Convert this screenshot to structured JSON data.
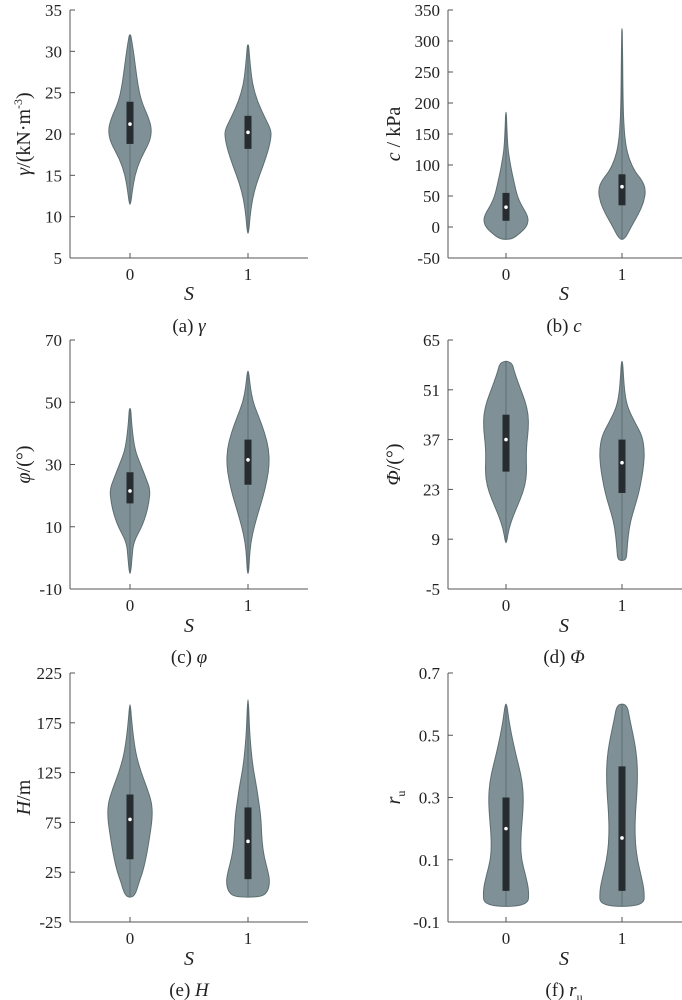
{
  "colors": {
    "violin_fill": "#7f9196",
    "violin_stroke": "#5d6e72",
    "box": "#262c30",
    "median": "#ffffff",
    "axis": "#555555"
  },
  "chart_data": [
    {
      "type": "violin",
      "caption": {
        "prefix": "(a) ",
        "sym": "γ",
        "sub": ""
      },
      "xlabel": "S",
      "ylabel": {
        "sym": "γ",
        "text": "/(kN·m",
        "sup": "-3",
        "tail": ")"
      },
      "categories": [
        "0",
        "1"
      ],
      "ylim": [
        5,
        35
      ],
      "yticks": [
        5,
        10,
        15,
        20,
        25,
        30,
        35
      ],
      "ytick_labels": [
        "5",
        "10",
        "15",
        "20",
        "25",
        "30",
        "35"
      ],
      "violins": [
        {
          "category": "0",
          "min": 11.5,
          "max": 32,
          "q1": 18.8,
          "median": 21.2,
          "q3": 23.9,
          "profile": [
            [
              11.5,
              0.02
            ],
            [
              13,
              0.08
            ],
            [
              15,
              0.17
            ],
            [
              17,
              0.37
            ],
            [
              19,
              0.7
            ],
            [
              20.5,
              0.78
            ],
            [
              22,
              0.66
            ],
            [
              24,
              0.4
            ],
            [
              26,
              0.28
            ],
            [
              28,
              0.2
            ],
            [
              30,
              0.12
            ],
            [
              31.5,
              0.05
            ],
            [
              32,
              0.02
            ]
          ]
        },
        {
          "category": "1",
          "min": 8,
          "max": 30.8,
          "q1": 18.2,
          "median": 20.2,
          "q3": 22.2,
          "profile": [
            [
              8,
              0.02
            ],
            [
              10,
              0.07
            ],
            [
              12,
              0.15
            ],
            [
              14,
              0.3
            ],
            [
              16,
              0.52
            ],
            [
              18,
              0.72
            ],
            [
              19.5,
              0.82
            ],
            [
              20.5,
              0.82
            ],
            [
              22,
              0.6
            ],
            [
              24,
              0.33
            ],
            [
              26,
              0.16
            ],
            [
              28,
              0.09
            ],
            [
              30,
              0.04
            ],
            [
              30.8,
              0.02
            ]
          ]
        }
      ],
      "xlabel_sym": "S"
    },
    {
      "type": "violin",
      "caption": {
        "prefix": "(b) ",
        "sym": "c",
        "sub": ""
      },
      "xlabel": "S",
      "ylabel": {
        "sym": "c",
        "text": " / kPa",
        "sup": "",
        "tail": ""
      },
      "categories": [
        "0",
        "1"
      ],
      "ylim": [
        -50,
        350
      ],
      "yticks": [
        -50,
        0,
        50,
        100,
        150,
        200,
        250,
        300,
        350
      ],
      "ytick_labels": [
        "-50",
        "0",
        "50",
        "100",
        "150",
        "200",
        "250",
        "300",
        "350"
      ],
      "violins": [
        {
          "category": "0",
          "min": -20,
          "max": 185,
          "q1": 10,
          "median": 32,
          "q3": 55,
          "profile": [
            [
              -20,
              0.2
            ],
            [
              -10,
              0.5
            ],
            [
              0,
              0.72
            ],
            [
              10,
              0.8
            ],
            [
              20,
              0.75
            ],
            [
              35,
              0.55
            ],
            [
              50,
              0.4
            ],
            [
              70,
              0.3
            ],
            [
              90,
              0.2
            ],
            [
              110,
              0.12
            ],
            [
              130,
              0.06
            ],
            [
              160,
              0.03
            ],
            [
              185,
              0.015
            ]
          ]
        },
        {
          "category": "1",
          "min": -20,
          "max": 320,
          "q1": 35,
          "median": 65,
          "q3": 85,
          "profile": [
            [
              -20,
              0.1
            ],
            [
              0,
              0.32
            ],
            [
              20,
              0.58
            ],
            [
              40,
              0.78
            ],
            [
              60,
              0.85
            ],
            [
              75,
              0.72
            ],
            [
              90,
              0.45
            ],
            [
              110,
              0.25
            ],
            [
              130,
              0.14
            ],
            [
              160,
              0.07
            ],
            [
              200,
              0.04
            ],
            [
              250,
              0.025
            ],
            [
              300,
              0.015
            ],
            [
              320,
              0.01
            ]
          ]
        }
      ]
    },
    {
      "type": "violin",
      "caption": {
        "prefix": "(c) ",
        "sym": "φ",
        "sub": ""
      },
      "xlabel": "S",
      "ylabel": {
        "sym": "φ",
        "text": "/(°)",
        "sup": "",
        "tail": ""
      },
      "categories": [
        "0",
        "1"
      ],
      "ylim": [
        -10,
        70
      ],
      "yticks": [
        -10,
        10,
        30,
        50,
        70
      ],
      "ytick_labels": [
        "-10",
        "10",
        "30",
        "50",
        "70"
      ],
      "violins": [
        {
          "category": "0",
          "min": -5,
          "max": 48,
          "q1": 17.5,
          "median": 21.5,
          "q3": 27.5,
          "profile": [
            [
              -5,
              0.02
            ],
            [
              0,
              0.07
            ],
            [
              5,
              0.12
            ],
            [
              10,
              0.42
            ],
            [
              14,
              0.58
            ],
            [
              18,
              0.68
            ],
            [
              22,
              0.72
            ],
            [
              26,
              0.55
            ],
            [
              30,
              0.38
            ],
            [
              34,
              0.2
            ],
            [
              38,
              0.12
            ],
            [
              42,
              0.07
            ],
            [
              46,
              0.04
            ],
            [
              48,
              0.02
            ]
          ]
        },
        {
          "category": "1",
          "min": -5,
          "max": 60,
          "q1": 23.5,
          "median": 31.5,
          "q3": 38,
          "profile": [
            [
              -5,
              0.02
            ],
            [
              0,
              0.05
            ],
            [
              5,
              0.1
            ],
            [
              10,
              0.22
            ],
            [
              15,
              0.38
            ],
            [
              20,
              0.55
            ],
            [
              25,
              0.68
            ],
            [
              30,
              0.76
            ],
            [
              35,
              0.74
            ],
            [
              40,
              0.6
            ],
            [
              45,
              0.4
            ],
            [
              50,
              0.18
            ],
            [
              55,
              0.08
            ],
            [
              60,
              0.02
            ]
          ]
        }
      ]
    },
    {
      "type": "violin",
      "caption": {
        "prefix": "(d) ",
        "sym": "Φ",
        "sub": ""
      },
      "xlabel": "S",
      "ylabel": {
        "sym": "Φ",
        "text": "/(°)",
        "sup": "",
        "tail": ""
      },
      "categories": [
        "0",
        "1"
      ],
      "ylim": [
        -5,
        65
      ],
      "yticks": [
        -5,
        9,
        23,
        37,
        51,
        65
      ],
      "ytick_labels": [
        "-5",
        "9",
        "23",
        "37",
        "51",
        "65"
      ],
      "violins": [
        {
          "category": "0",
          "min": 8,
          "max": 59,
          "q1": 28,
          "median": 37,
          "q3": 44,
          "profile": [
            [
              8,
              0.02
            ],
            [
              12,
              0.1
            ],
            [
              16,
              0.28
            ],
            [
              20,
              0.5
            ],
            [
              24,
              0.68
            ],
            [
              28,
              0.74
            ],
            [
              32,
              0.72
            ],
            [
              36,
              0.74
            ],
            [
              40,
              0.8
            ],
            [
              44,
              0.8
            ],
            [
              48,
              0.68
            ],
            [
              52,
              0.48
            ],
            [
              56,
              0.3
            ],
            [
              58.5,
              0.22
            ],
            [
              59,
              0.02
            ]
          ]
        },
        {
          "category": "1",
          "min": 3,
          "max": 59,
          "q1": 22,
          "median": 30.5,
          "q3": 37,
          "profile": [
            [
              3,
              0.15
            ],
            [
              6,
              0.18
            ],
            [
              10,
              0.22
            ],
            [
              14,
              0.3
            ],
            [
              18,
              0.45
            ],
            [
              22,
              0.6
            ],
            [
              26,
              0.7
            ],
            [
              30,
              0.78
            ],
            [
              34,
              0.8
            ],
            [
              38,
              0.72
            ],
            [
              42,
              0.45
            ],
            [
              46,
              0.2
            ],
            [
              50,
              0.1
            ],
            [
              55,
              0.05
            ],
            [
              59,
              0.02
            ]
          ]
        }
      ]
    },
    {
      "type": "violin",
      "caption": {
        "prefix": "(e) ",
        "sym": "H",
        "sub": ""
      },
      "xlabel": "S",
      "ylabel": {
        "sym": "H",
        "text": "/m",
        "sup": "",
        "tail": ""
      },
      "categories": [
        "0",
        "1"
      ],
      "ylim": [
        -25,
        225
      ],
      "yticks": [
        -25,
        25,
        75,
        125,
        175,
        225
      ],
      "ytick_labels": [
        "-25",
        "25",
        "75",
        "125",
        "175",
        "225"
      ],
      "violins": [
        {
          "category": "0",
          "min": 0,
          "max": 193,
          "q1": 38,
          "median": 78,
          "q3": 103,
          "profile": [
            [
              0,
              0.1
            ],
            [
              5,
              0.22
            ],
            [
              15,
              0.32
            ],
            [
              25,
              0.45
            ],
            [
              40,
              0.58
            ],
            [
              60,
              0.7
            ],
            [
              80,
              0.8
            ],
            [
              95,
              0.78
            ],
            [
              110,
              0.6
            ],
            [
              125,
              0.4
            ],
            [
              140,
              0.24
            ],
            [
              160,
              0.12
            ],
            [
              180,
              0.05
            ],
            [
              193,
              0.015
            ]
          ]
        },
        {
          "category": "1",
          "min": 0,
          "max": 198,
          "q1": 18,
          "median": 56,
          "q3": 90,
          "profile": [
            [
              0,
              0.45
            ],
            [
              5,
              0.7
            ],
            [
              15,
              0.78
            ],
            [
              25,
              0.72
            ],
            [
              40,
              0.58
            ],
            [
              55,
              0.5
            ],
            [
              70,
              0.48
            ],
            [
              85,
              0.44
            ],
            [
              100,
              0.36
            ],
            [
              115,
              0.28
            ],
            [
              130,
              0.18
            ],
            [
              150,
              0.1
            ],
            [
              170,
              0.05
            ],
            [
              198,
              0.015
            ]
          ]
        }
      ]
    },
    {
      "type": "violin",
      "caption": {
        "prefix": "(f) ",
        "sym": "r",
        "sub": "u"
      },
      "xlabel": "S",
      "ylabel": {
        "sym": "r",
        "text": "",
        "sup": "",
        "tail": "",
        "sub": "u"
      },
      "categories": [
        "0",
        "1"
      ],
      "ylim": [
        -0.1,
        0.7
      ],
      "yticks": [
        -0.1,
        0.1,
        0.3,
        0.5,
        0.7
      ],
      "ytick_labels": [
        "-0.1",
        "0.1",
        "0.3",
        "0.5",
        "0.7"
      ],
      "violins": [
        {
          "category": "0",
          "min": -0.05,
          "max": 0.6,
          "q1": 0.0,
          "median": 0.2,
          "q3": 0.3,
          "profile": [
            [
              -0.05,
              0.78
            ],
            [
              0,
              0.82
            ],
            [
              0.05,
              0.7
            ],
            [
              0.1,
              0.55
            ],
            [
              0.15,
              0.52
            ],
            [
              0.2,
              0.55
            ],
            [
              0.25,
              0.6
            ],
            [
              0.3,
              0.62
            ],
            [
              0.35,
              0.58
            ],
            [
              0.4,
              0.46
            ],
            [
              0.45,
              0.32
            ],
            [
              0.5,
              0.2
            ],
            [
              0.55,
              0.1
            ],
            [
              0.6,
              0.03
            ]
          ]
        },
        {
          "category": "1",
          "min": -0.05,
          "max": 0.6,
          "q1": 0.0,
          "median": 0.17,
          "q3": 0.4,
          "profile": [
            [
              -0.05,
              0.78
            ],
            [
              0,
              0.8
            ],
            [
              0.05,
              0.68
            ],
            [
              0.1,
              0.55
            ],
            [
              0.15,
              0.48
            ],
            [
              0.2,
              0.46
            ],
            [
              0.25,
              0.48
            ],
            [
              0.3,
              0.52
            ],
            [
              0.35,
              0.55
            ],
            [
              0.4,
              0.55
            ],
            [
              0.45,
              0.5
            ],
            [
              0.5,
              0.4
            ],
            [
              0.55,
              0.28
            ],
            [
              0.6,
              0.18
            ]
          ]
        }
      ]
    }
  ]
}
